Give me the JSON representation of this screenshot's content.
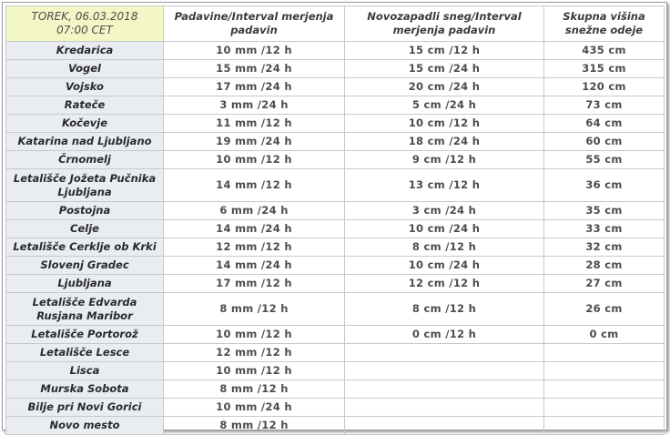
{
  "header": {
    "date_line1": "TOREK, 06.03.2018",
    "date_line2": "07:00 CET",
    "col_precip": "Padavine/Interval merjenja padavin",
    "col_newsnow": "Novozapadli sneg/Interval merjenja padavin",
    "col_total": "Skupna višina snežne odeje"
  },
  "rows": [
    {
      "station": "Kredarica",
      "precip": "10 mm /12 h",
      "newsnow": "15 cm /12 h",
      "total": "435 cm"
    },
    {
      "station": "Vogel",
      "precip": "15 mm /24 h",
      "newsnow": "15 cm /24 h",
      "total": "315 cm"
    },
    {
      "station": "Vojsko",
      "precip": "17 mm /24 h",
      "newsnow": "20 cm /24 h",
      "total": "120 cm"
    },
    {
      "station": "Rateče",
      "precip": "3 mm /24 h",
      "newsnow": "5 cm /24 h",
      "total": "73 cm"
    },
    {
      "station": "Kočevje",
      "precip": "11 mm /12 h",
      "newsnow": "10 cm /12 h",
      "total": "64 cm"
    },
    {
      "station": "Katarina nad Ljubljano",
      "precip": "19 mm /24 h",
      "newsnow": "18 cm /24 h",
      "total": "60 cm"
    },
    {
      "station": "Črnomelj",
      "precip": "10 mm /12 h",
      "newsnow": "9 cm /12 h",
      "total": "55 cm"
    },
    {
      "station": "Letališče Jožeta Pučnika Ljubljana",
      "precip": "14 mm /12 h",
      "newsnow": "13 cm /12 h",
      "total": "36 cm",
      "tall": true
    },
    {
      "station": "Postojna",
      "precip": "6 mm /24 h",
      "newsnow": "3 cm /24 h",
      "total": "35 cm"
    },
    {
      "station": "Celje",
      "precip": "14 mm /24 h",
      "newsnow": "10 cm /24 h",
      "total": "33 cm"
    },
    {
      "station": "Letališče Cerklje ob Krki",
      "precip": "12 mm /12 h",
      "newsnow": "8 cm /12 h",
      "total": "32 cm"
    },
    {
      "station": "Slovenj Gradec",
      "precip": "14 mm /24 h",
      "newsnow": "10 cm /24 h",
      "total": "28 cm"
    },
    {
      "station": "Ljubljana",
      "precip": "17 mm /12 h",
      "newsnow": "12 cm /12 h",
      "total": "27 cm"
    },
    {
      "station": "Letališče Edvarda Rusjana Maribor",
      "precip": "8 mm /12 h",
      "newsnow": "8 cm /12 h",
      "total": "26 cm",
      "tall": true
    },
    {
      "station": "Letališče Portorož",
      "precip": "10 mm /12 h",
      "newsnow": "0 cm /12 h",
      "total": "0 cm"
    },
    {
      "station": "Letališče Lesce",
      "precip": "12 mm /12 h",
      "newsnow": "",
      "total": ""
    },
    {
      "station": "Lisca",
      "precip": "10 mm /12 h",
      "newsnow": "",
      "total": ""
    },
    {
      "station": "Murska Sobota",
      "precip": "8 mm /12 h",
      "newsnow": "",
      "total": ""
    },
    {
      "station": "Bilje pri Novi Gorici",
      "precip": "10 mm /24 h",
      "newsnow": "",
      "total": ""
    },
    {
      "station": "Novo mesto",
      "precip": "8 mm /12 h",
      "newsnow": "",
      "total": ""
    }
  ]
}
